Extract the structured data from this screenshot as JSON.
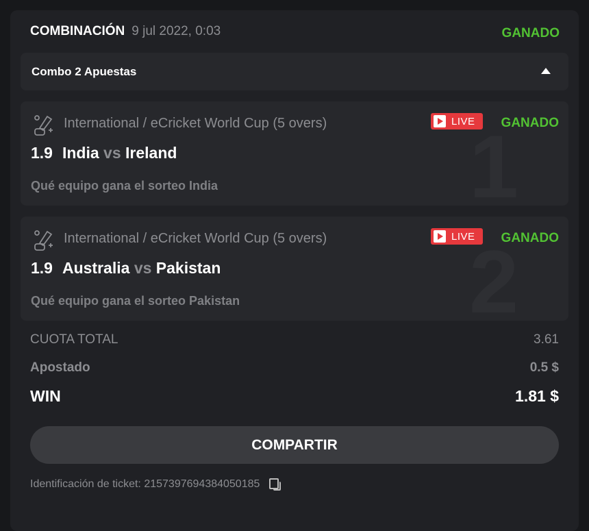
{
  "header": {
    "title": "COMBINACIÓN",
    "date": "9 jul 2022, 0:03",
    "status": "GANADO"
  },
  "combo": {
    "label": "Combo 2 Apuestas"
  },
  "bets": [
    {
      "league": "International / eCricket World Cup (5 overs)",
      "live": "LIVE",
      "status": "GANADO",
      "odd": "1.9",
      "home": "India",
      "vs": "vs",
      "away": "Ireland",
      "pick": "Qué equipo gana el sorteo India",
      "number": "1"
    },
    {
      "league": "International / eCricket World Cup (5 overs)",
      "live": "LIVE",
      "status": "GANADO",
      "odd": "1.9",
      "home": "Australia",
      "vs": "vs",
      "away": "Pakistan",
      "pick": "Qué equipo gana el sorteo Pakistan",
      "number": "2"
    }
  ],
  "totals": {
    "odds_label": "CUOTA TOTAL",
    "odds_value": "3.61",
    "stake_label": "Apostado",
    "stake_value": "0.5 $",
    "win_label": "WIN",
    "win_value": "1.81 $"
  },
  "share_label": "COMPARTIR",
  "ticket": {
    "label": "Identificación de ticket:",
    "id": "2157397694384050185"
  },
  "colors": {
    "won": "#52c233",
    "live": "#e6393d"
  }
}
